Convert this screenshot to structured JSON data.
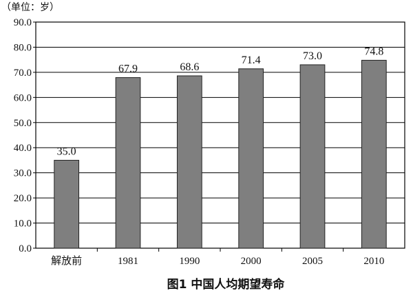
{
  "chart_data": {
    "type": "bar",
    "title": "图1  中国人均期望寿命",
    "unit_note": "（单位：岁）",
    "categories": [
      "解放前",
      "1981",
      "1990",
      "2000",
      "2005",
      "2010"
    ],
    "values": [
      35.0,
      67.9,
      68.6,
      71.4,
      73.0,
      74.8
    ],
    "value_labels": [
      "35.0",
      "67.9",
      "68.6",
      "71.4",
      "73.0",
      "74.8"
    ],
    "ylim": [
      0,
      90
    ],
    "yticks": [
      "0.0",
      "10.0",
      "20.0",
      "30.0",
      "40.0",
      "50.0",
      "60.0",
      "70.0",
      "80.0",
      "90.0"
    ],
    "xlabel": "",
    "ylabel": "",
    "grid": true,
    "colors": {
      "bar": "#7f7f7f",
      "bar_edge": "#222222",
      "grid": "#000000",
      "axis": "#000000"
    }
  }
}
